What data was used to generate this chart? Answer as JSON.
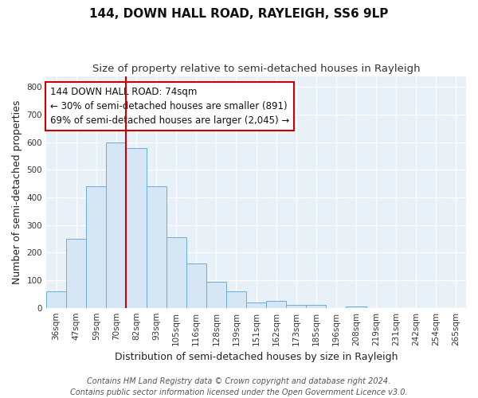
{
  "title": "144, DOWN HALL ROAD, RAYLEIGH, SS6 9LP",
  "subtitle": "Size of property relative to semi-detached houses in Rayleigh",
  "xlabel": "Distribution of semi-detached houses by size in Rayleigh",
  "ylabel": "Number of semi-detached properties",
  "bar_labels": [
    "36sqm",
    "47sqm",
    "59sqm",
    "70sqm",
    "82sqm",
    "93sqm",
    "105sqm",
    "116sqm",
    "128sqm",
    "139sqm",
    "151sqm",
    "162sqm",
    "173sqm",
    "185sqm",
    "196sqm",
    "208sqm",
    "219sqm",
    "231sqm",
    "242sqm",
    "254sqm",
    "265sqm"
  ],
  "bar_heights": [
    60,
    250,
    440,
    600,
    580,
    440,
    255,
    160,
    95,
    60,
    20,
    25,
    10,
    10,
    0,
    5,
    0,
    0,
    0,
    0,
    0
  ],
  "bar_color": "#d6e6f5",
  "bar_edge_color": "#6aaed6",
  "red_line_index": 4,
  "highlight_line_color": "#cc0000",
  "annotation_line1": "144 DOWN HALL ROAD: 74sqm",
  "annotation_line2": "← 30% of semi-detached houses are smaller (891)",
  "annotation_line3": "69% of semi-detached houses are larger (2,045) →",
  "annotation_box_color": "#ffffff",
  "annotation_box_edge_color": "#cc0000",
  "ylim": [
    0,
    840
  ],
  "yticks": [
    0,
    100,
    200,
    300,
    400,
    500,
    600,
    700,
    800
  ],
  "footer_line1": "Contains HM Land Registry data © Crown copyright and database right 2024.",
  "footer_line2": "Contains public sector information licensed under the Open Government Licence v3.0.",
  "plot_bg_color": "#e8f0f8",
  "fig_bg_color": "#ffffff",
  "grid_color": "#ffffff",
  "grid_linewidth": 1.0,
  "title_fontsize": 11,
  "subtitle_fontsize": 9.5,
  "axis_label_fontsize": 9,
  "tick_fontsize": 7.5,
  "annotation_fontsize": 8.5,
  "footer_fontsize": 7
}
